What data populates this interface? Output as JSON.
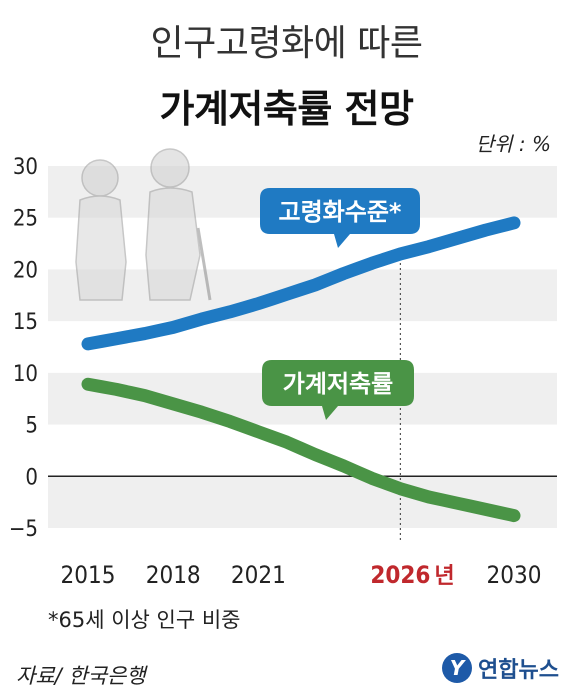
{
  "title_line1": "인구고령화에 따른",
  "title_line2": "가계저축률 전망",
  "unit_label": "단위 : %",
  "footnote": "*65세 이상 인구 비중",
  "source": "자료/ 한국은행",
  "logo": {
    "mark": "Y",
    "text": "연합뉴스",
    "icon": "yonhap-logo-icon"
  },
  "colors": {
    "aging": "#1f7ac3",
    "saving": "#4a9446",
    "band": "#efefef",
    "highlight_year": "#c0282d"
  },
  "chart_data": {
    "type": "line",
    "title": "가계저축률 전망",
    "ylim": [
      -5,
      30
    ],
    "yticks": [
      "30",
      "25",
      "20",
      "15",
      "10",
      "5",
      "0",
      "−5"
    ],
    "xlim": [
      2015,
      2030
    ],
    "xtick_labels": [
      "2015",
      "2018",
      "2021",
      "2026",
      "2030"
    ],
    "highlight_year": {
      "label": "2026",
      "suffix": "년",
      "x": 2026
    },
    "grid": "alternating-horizontal-bands",
    "series": [
      {
        "name": "고령화수준*",
        "key": "aging",
        "x": [
          2015,
          2016,
          2017,
          2018,
          2019,
          2020,
          2021,
          2022,
          2023,
          2024,
          2025,
          2026,
          2027,
          2028,
          2029,
          2030
        ],
        "values": [
          12.8,
          13.3,
          13.8,
          14.4,
          15.2,
          15.9,
          16.7,
          17.6,
          18.5,
          19.6,
          20.6,
          21.5,
          22.2,
          23.0,
          23.8,
          24.5
        ]
      },
      {
        "name": "가계저축률",
        "key": "saving",
        "x": [
          2015,
          2016,
          2017,
          2018,
          2019,
          2020,
          2021,
          2022,
          2023,
          2024,
          2025,
          2026,
          2027,
          2028,
          2029,
          2030
        ],
        "values": [
          8.9,
          8.4,
          7.8,
          7.0,
          6.2,
          5.3,
          4.3,
          3.3,
          2.1,
          1.0,
          -0.2,
          -1.2,
          -2.0,
          -2.6,
          -3.2,
          -3.8
        ]
      }
    ]
  }
}
